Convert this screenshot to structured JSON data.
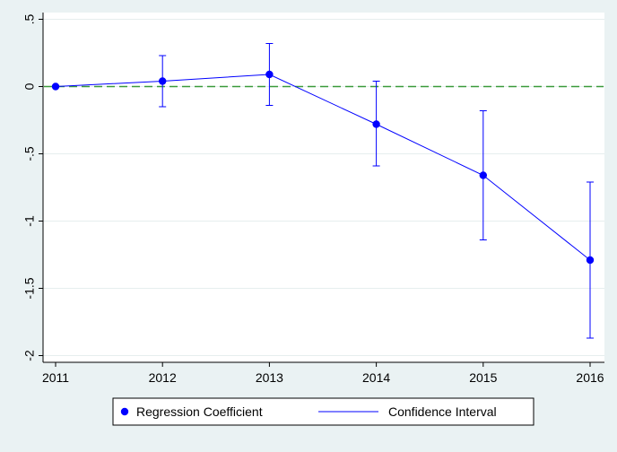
{
  "chart_data": {
    "type": "line",
    "title": "",
    "xlabel": "",
    "ylabel": "",
    "x": [
      2011,
      2012,
      2013,
      2014,
      2015,
      2016
    ],
    "x_tick_labels": [
      "2011",
      "2012",
      "2013",
      "2014",
      "2015",
      "2016"
    ],
    "ylim": [
      -2.05,
      0.55
    ],
    "y_ticks": [
      0.5,
      0,
      -0.5,
      -1,
      -1.5,
      -2
    ],
    "y_tick_labels": [
      ".5",
      "0",
      "-.5",
      "-1",
      "-1.5",
      "-2"
    ],
    "series": [
      {
        "name": "Regression Coefficient",
        "values": [
          0,
          0.04,
          0.09,
          -0.28,
          -0.66,
          -1.29
        ],
        "ci_lower": [
          0,
          -0.15,
          -0.14,
          -0.59,
          -1.14,
          -1.87
        ],
        "ci_upper": [
          0,
          0.23,
          0.32,
          0.04,
          -0.18,
          -0.71
        ]
      }
    ],
    "reference_line": {
      "y": 0,
      "style": "dashed",
      "color": "#3a9a3a"
    },
    "legend": {
      "position": "bottom",
      "items": [
        {
          "label": "Regression Coefficient",
          "marker": "dot"
        },
        {
          "label": "Confidence Interval",
          "marker": "line"
        }
      ]
    },
    "grid": true,
    "colors": {
      "series": "#0000ff",
      "background": "#eaf2f3",
      "plot": "#ffffff",
      "grid": "#e6eeee"
    }
  }
}
